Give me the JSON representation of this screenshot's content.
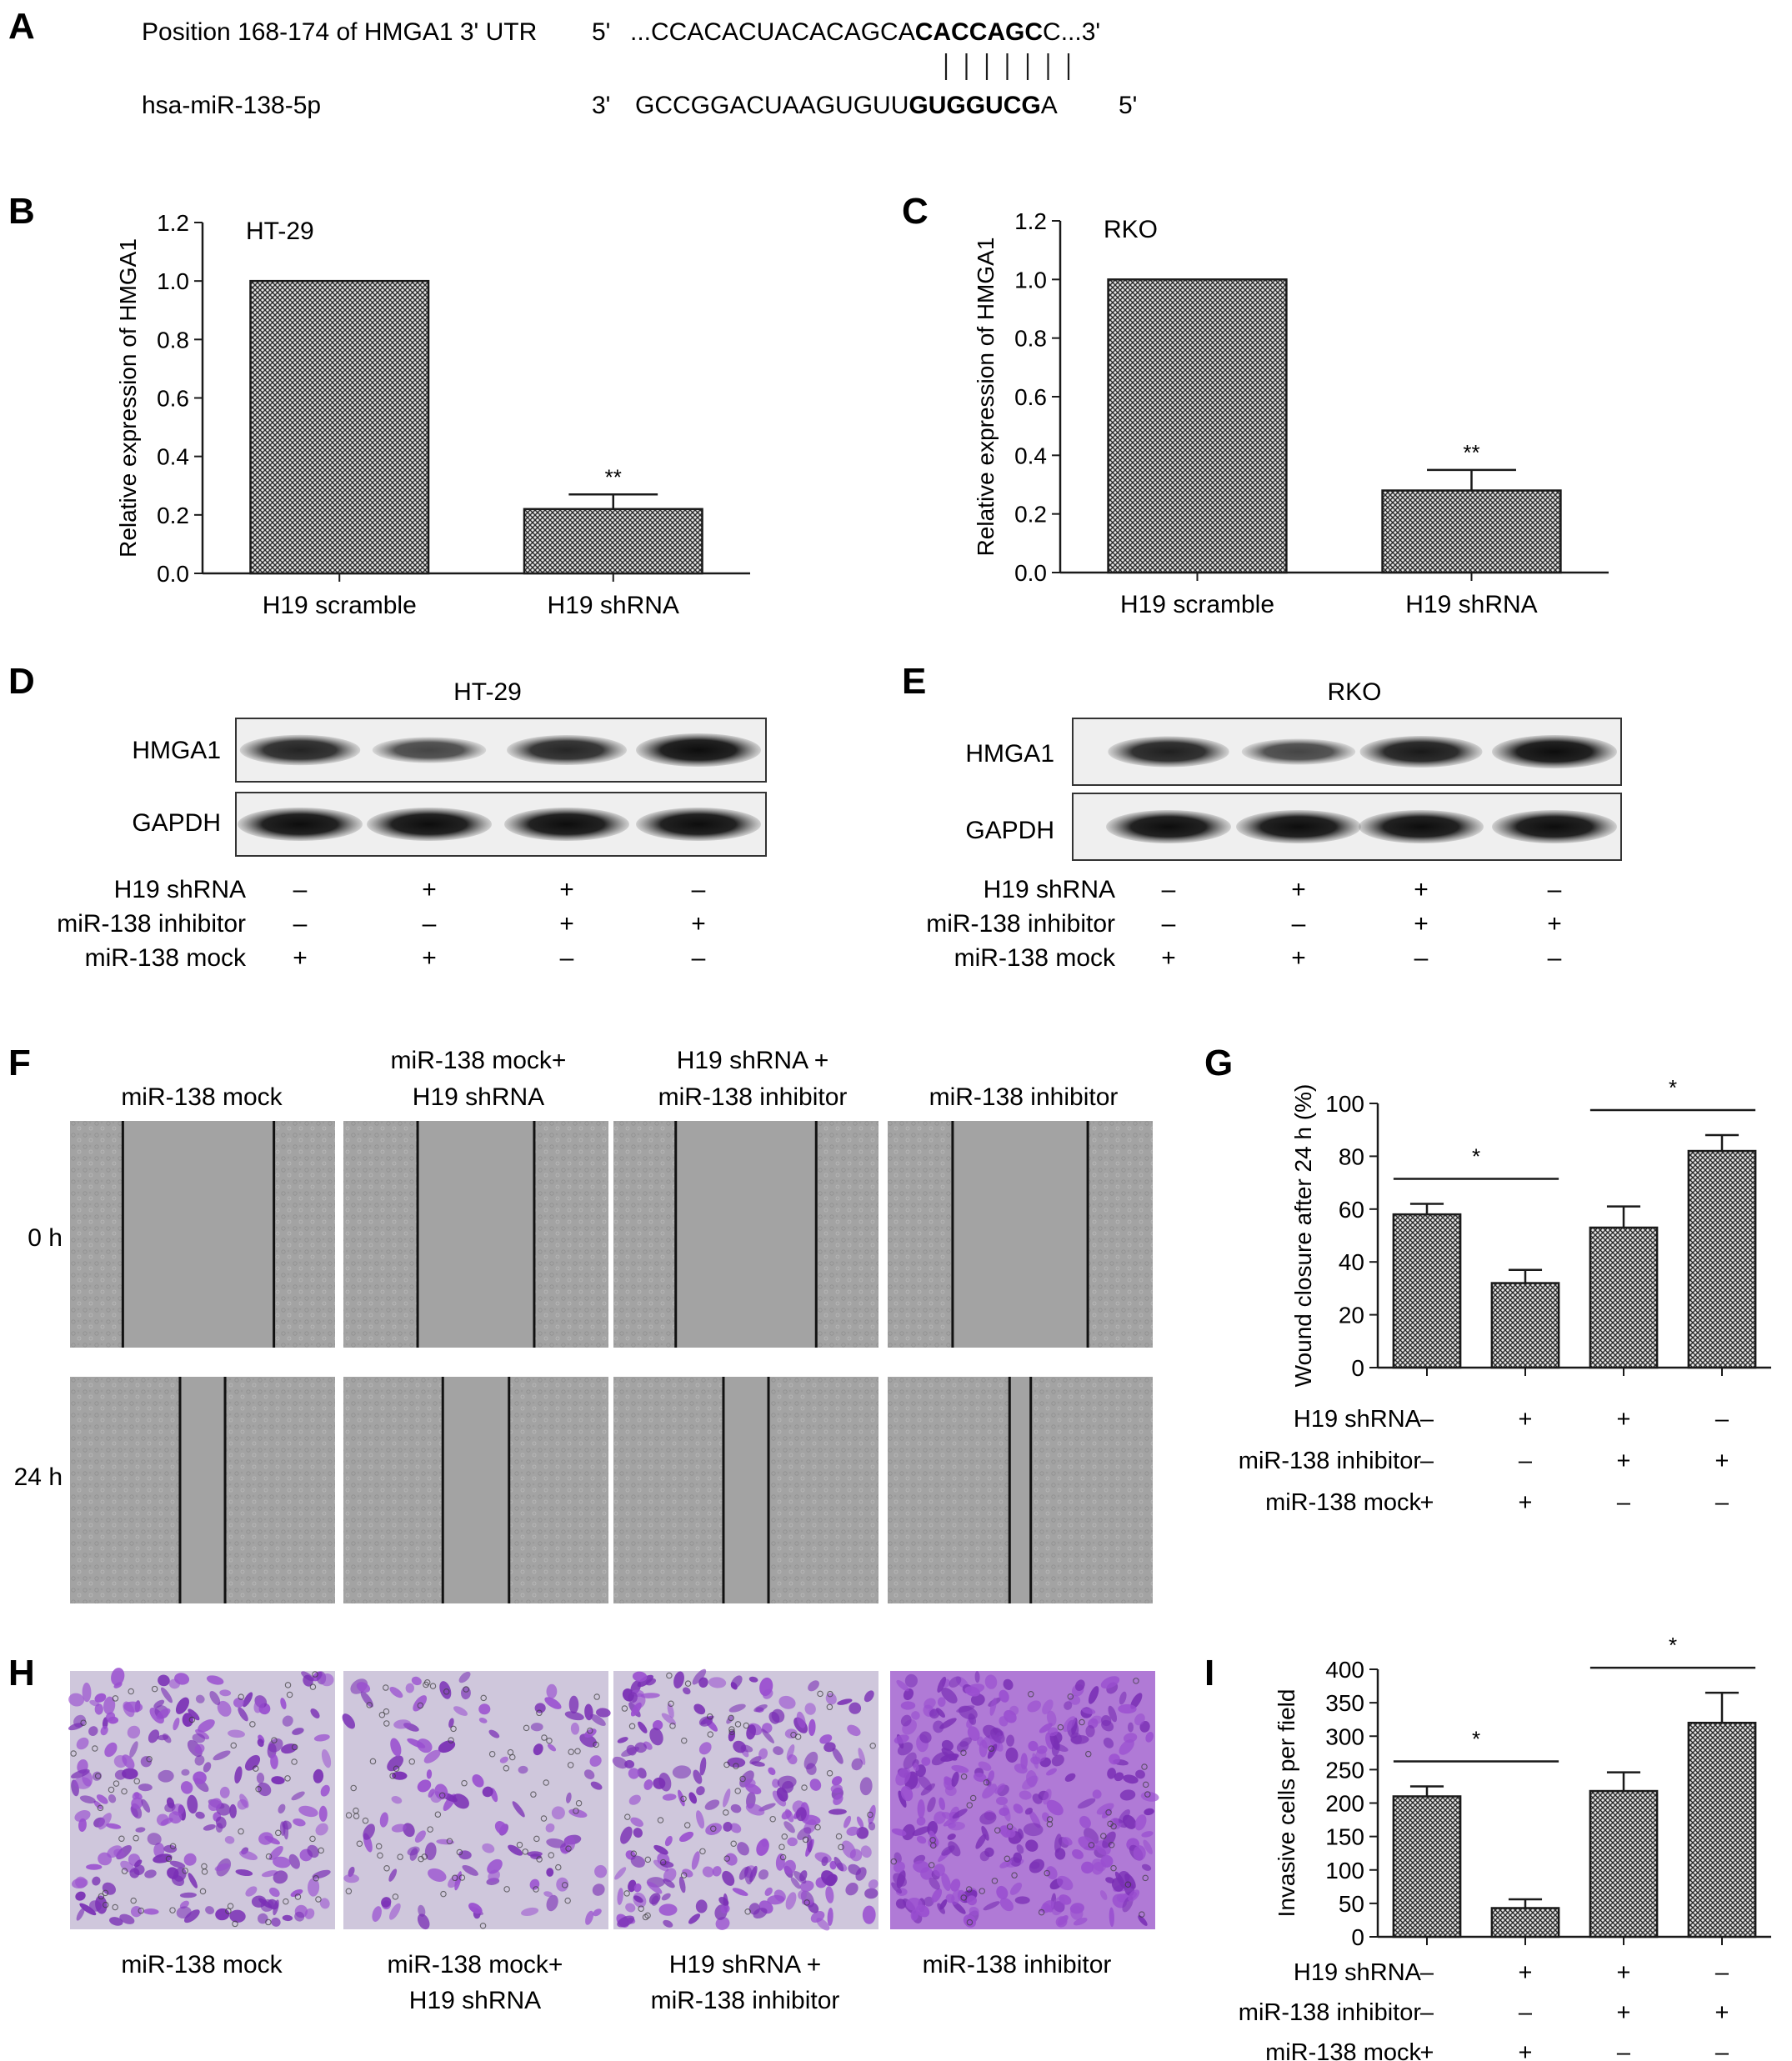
{
  "panel_labels": {
    "a": "A",
    "b": "B",
    "c": "C",
    "d": "D",
    "e": "E",
    "f": "F",
    "g": "G",
    "h": "H",
    "i": "I"
  },
  "panel_a": {
    "row1_label": "Position 168-174 of HMGA1 3' UTR",
    "row1_end5": "5'",
    "row1_seq_plain": "...CCACACUACACAGCA",
    "row1_seq_bold": "CACCAGC",
    "row1_seq_tail": "C...3'",
    "row2_label": "hsa-miR-138-5p",
    "row2_end3": "3'",
    "row2_seq_plain": "GCCGGACUAAGUGUU",
    "row2_seq_bold": "GUGGUCG",
    "row2_seq_tail": "A",
    "row2_end5": "5'",
    "pairing_lines": 7
  },
  "chart_data": [
    {
      "id": "B",
      "type": "bar",
      "title": "HT-29",
      "ylabel": "Relative expression of HMGA1",
      "categories": [
        "H19 scramble",
        "H19 shRNA"
      ],
      "values": [
        1.0,
        0.22
      ],
      "errors": [
        0,
        0.05
      ],
      "significance": [
        "",
        "**"
      ],
      "ylim": [
        0,
        1.2
      ],
      "yticks": [
        "0.0",
        "0.2",
        "0.4",
        "0.6",
        "0.8",
        "1.0",
        "1.2"
      ]
    },
    {
      "id": "C",
      "type": "bar",
      "title": "RKO",
      "ylabel": "Relative expression of HMGA1",
      "categories": [
        "H19 scramble",
        "H19 shRNA"
      ],
      "values": [
        1.0,
        0.28
      ],
      "errors": [
        0,
        0.07
      ],
      "significance": [
        "",
        "**"
      ],
      "ylim": [
        0,
        1.2
      ],
      "yticks": [
        "0.0",
        "0.2",
        "0.4",
        "0.6",
        "0.8",
        "1.0",
        "1.2"
      ]
    },
    {
      "id": "G",
      "type": "bar",
      "ylabel": "Wound closure after 24 h (%)",
      "values": [
        58,
        32,
        53,
        82
      ],
      "errors": [
        4,
        5,
        8,
        6
      ],
      "ylim": [
        0,
        100
      ],
      "yticks": [
        "0",
        "20",
        "40",
        "60",
        "80",
        "100"
      ],
      "significance_brackets": [
        {
          "from": 0,
          "to": 1,
          "label": "*"
        },
        {
          "from": 2,
          "to": 3,
          "label": "*"
        }
      ],
      "conditions": {
        "rows": [
          "H19 shRNA",
          "miR-138 inhibitor",
          "miR-138 mock"
        ],
        "signs": [
          [
            "–",
            "+",
            "+",
            "–"
          ],
          [
            "–",
            "–",
            "+",
            "+"
          ],
          [
            "+",
            "+",
            "–",
            "–"
          ]
        ]
      }
    },
    {
      "id": "I",
      "type": "bar",
      "ylabel": "Invasive cells per field",
      "values": [
        210,
        43,
        218,
        320
      ],
      "errors": [
        15,
        13,
        28,
        45
      ],
      "ylim": [
        0,
        400
      ],
      "yticks": [
        "0",
        "50",
        "100",
        "150",
        "200",
        "250",
        "300",
        "350",
        "400"
      ],
      "significance_brackets": [
        {
          "from": 0,
          "to": 1,
          "label": "*"
        },
        {
          "from": 2,
          "to": 3,
          "label": "*"
        }
      ],
      "conditions": {
        "rows": [
          "H19 shRNA",
          "miR-138 inhibitor",
          "miR-138 mock"
        ],
        "signs": [
          [
            "–",
            "+",
            "+",
            "–"
          ],
          [
            "–",
            "–",
            "+",
            "+"
          ],
          [
            "+",
            "+",
            "–",
            "–"
          ]
        ]
      }
    }
  ],
  "panel_d": {
    "title": "HT-29",
    "band1": "HMGA1",
    "band2": "GAPDH",
    "band1_intensity": [
      0.82,
      0.55,
      0.8,
      1.0
    ],
    "band2_intensity": [
      1.0,
      1.0,
      1.0,
      1.0
    ],
    "rows": [
      "H19 shRNA",
      "miR-138 inhibitor",
      "miR-138 mock"
    ],
    "signs": [
      [
        "–",
        "+",
        "+",
        "–"
      ],
      [
        "–",
        "–",
        "+",
        "+"
      ],
      [
        "+",
        "+",
        "–",
        "–"
      ]
    ]
  },
  "panel_e": {
    "title": "RKO",
    "band1": "HMGA1",
    "band2": "GAPDH",
    "band1_intensity": [
      0.85,
      0.55,
      0.9,
      1.0
    ],
    "band2_intensity": [
      1.0,
      1.0,
      1.0,
      1.0
    ],
    "rows": [
      "H19 shRNA",
      "miR-138 inhibitor",
      "miR-138 mock"
    ],
    "signs": [
      [
        "–",
        "+",
        "+",
        "–"
      ],
      [
        "–",
        "–",
        "+",
        "+"
      ],
      [
        "+",
        "+",
        "–",
        "–"
      ]
    ]
  },
  "panel_f": {
    "col1": "miR-138 mock",
    "col2_line1": "miR-138 mock+",
    "col2_line2": "H19 shRNA",
    "col3_line1": "H19 shRNA +",
    "col3_line2": "miR-138 inhibitor",
    "col4": "miR-138 inhibitor",
    "row1": "0 h",
    "row2": "24 h",
    "gap_0h": [
      0.57,
      0.44,
      0.53,
      0.51
    ],
    "gap_24h": [
      0.17,
      0.25,
      0.17,
      0.08
    ]
  },
  "panel_h": {
    "cap1": "miR-138 mock",
    "cap2_line1": "miR-138 mock+",
    "cap2_line2": "H19 shRNA",
    "cap3_line1": "H19 shRNA +",
    "cap3_line2": "miR-138 inhibitor",
    "cap4": "miR-138 inhibitor",
    "stain_density": [
      0.6,
      0.2,
      0.65,
      0.95
    ]
  },
  "colors": {
    "text": "#1a1a1a",
    "scratch_bg": "#a3a3a3",
    "stain": "#8a3fc2",
    "stain_bg": "#cfc7dc",
    "bar_pattern": "#333333"
  }
}
